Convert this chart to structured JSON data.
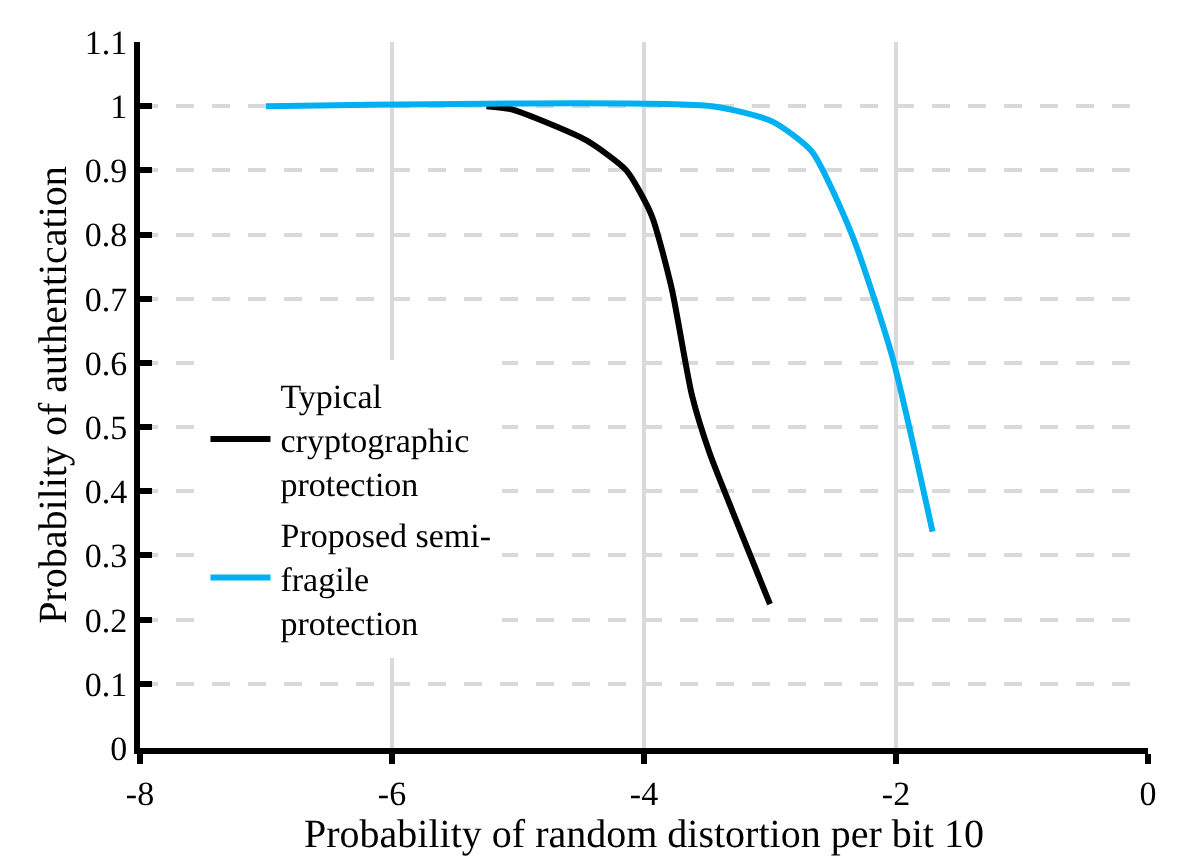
{
  "chart_data": {
    "type": "line",
    "xlabel": "Probability of random distortion per bit 10",
    "ylabel": "Probability of authentication",
    "xlim": [
      -8,
      0
    ],
    "xticks": [
      -8,
      -6,
      -4,
      -2,
      0
    ],
    "ylim": [
      0,
      1.1
    ],
    "yticks": [
      0,
      0.1,
      0.2,
      0.3,
      0.4,
      0.5,
      0.6,
      0.7,
      0.8,
      0.9,
      1,
      1.1
    ],
    "grid": true,
    "legend": "left",
    "marker": "none",
    "line_style": "solid",
    "series": [
      {
        "name": "Typical cryptographic protection",
        "color": "#000000",
        "x": [
          -5.25,
          -5.05,
          -4.46,
          -4.14,
          -3.94,
          -3.78,
          -3.62,
          -3.48,
          -3.3,
          -3.0
        ],
        "values": [
          1.0,
          0.995,
          0.947,
          0.9,
          0.83,
          0.716,
          0.55,
          0.46,
          0.37,
          0.224
        ]
      },
      {
        "name": "Proposed semi-fragile protection",
        "color": "#00b0f0",
        "x": [
          -7,
          -3.46,
          -2.98,
          -2.67,
          -2.35,
          -2.03,
          -1.71
        ],
        "values": [
          1.0,
          1.0,
          0.976,
          0.93,
          0.8,
          0.61,
          0.337
        ]
      }
    ]
  }
}
